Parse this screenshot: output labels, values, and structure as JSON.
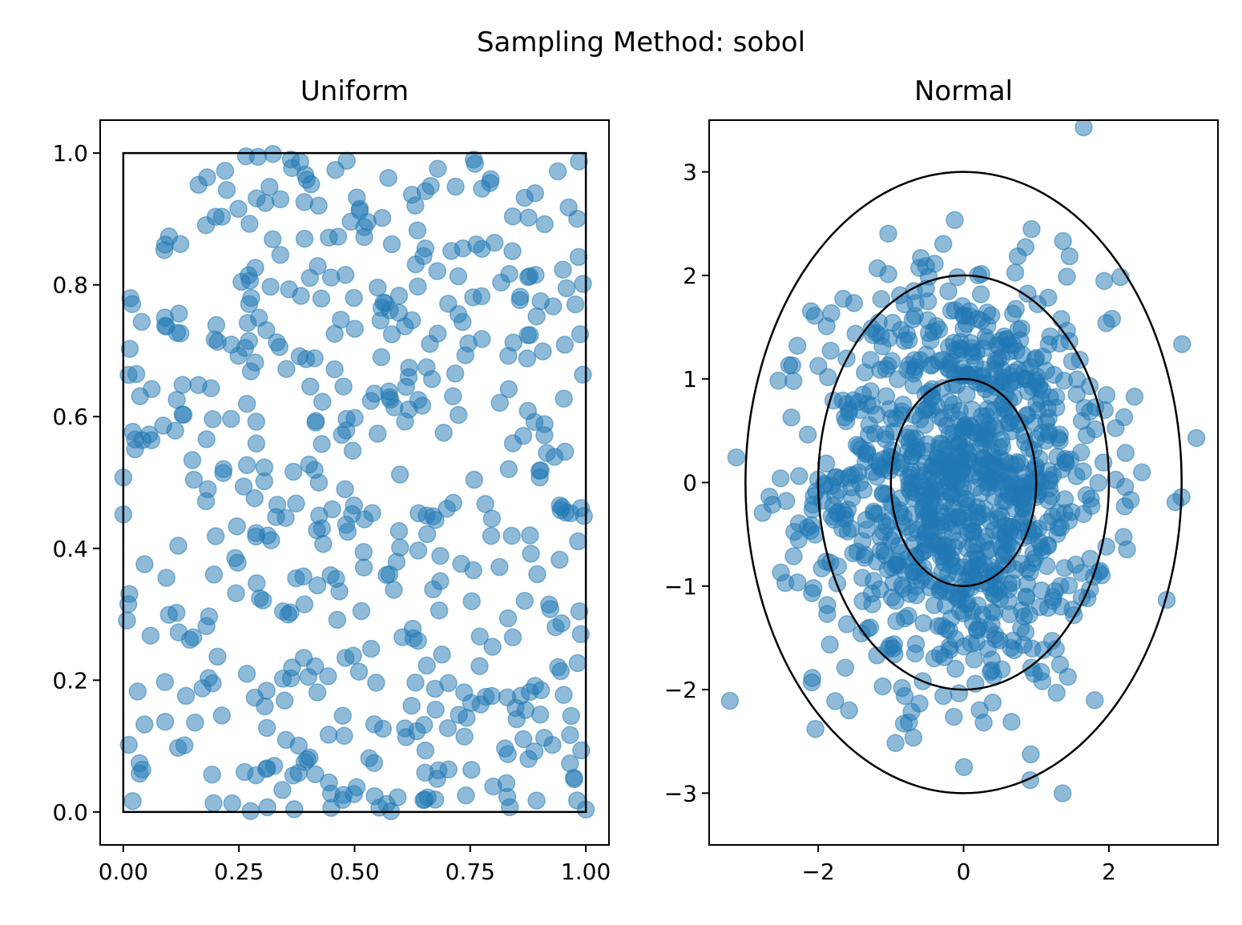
{
  "chart_data": [
    {
      "type": "scatter",
      "title": "Uniform",
      "xlim": [
        -0.05,
        1.05
      ],
      "ylim": [
        -0.05,
        1.05
      ],
      "xticks": [
        0,
        0.25,
        0.5,
        0.75,
        1.0
      ],
      "xtick_labels": [
        "0.00",
        "0.25",
        "0.50",
        "0.75",
        "1.00"
      ],
      "yticks": [
        0,
        0.2,
        0.4,
        0.6,
        0.8,
        1.0
      ],
      "ytick_labels": [
        "0.0",
        "0.2",
        "0.4",
        "0.6",
        "0.8",
        "1.0"
      ],
      "distribution": "uniform",
      "n_points": 512,
      "marker_color": "#1f77b4",
      "marker_alpha": 0.5,
      "overlay": {
        "shape": "rectangle",
        "x": [
          0,
          1
        ],
        "y": [
          0,
          1
        ],
        "color": "#000000"
      },
      "grid": false
    },
    {
      "type": "scatter",
      "title": "Normal",
      "xlim": [
        -3.5,
        3.5
      ],
      "ylim": [
        -3.5,
        3.5
      ],
      "xticks": [
        -2,
        0,
        2
      ],
      "xtick_labels": [
        "−2",
        "0",
        "2"
      ],
      "yticks": [
        -3,
        -2,
        -1,
        0,
        1,
        2,
        3
      ],
      "ytick_labels": [
        "−3",
        "−2",
        "−1",
        "0",
        "1",
        "2",
        "3"
      ],
      "distribution": "normal",
      "mean": [
        0,
        0
      ],
      "std": [
        1,
        1
      ],
      "n_points": 1024,
      "marker_color": "#1f77b4",
      "marker_alpha": 0.5,
      "overlay": {
        "shape": "circles",
        "radii": [
          1,
          2,
          3
        ],
        "color": "#000000"
      },
      "grid": false
    }
  ],
  "figure": {
    "suptitle": "Sampling Method: sobol"
  }
}
